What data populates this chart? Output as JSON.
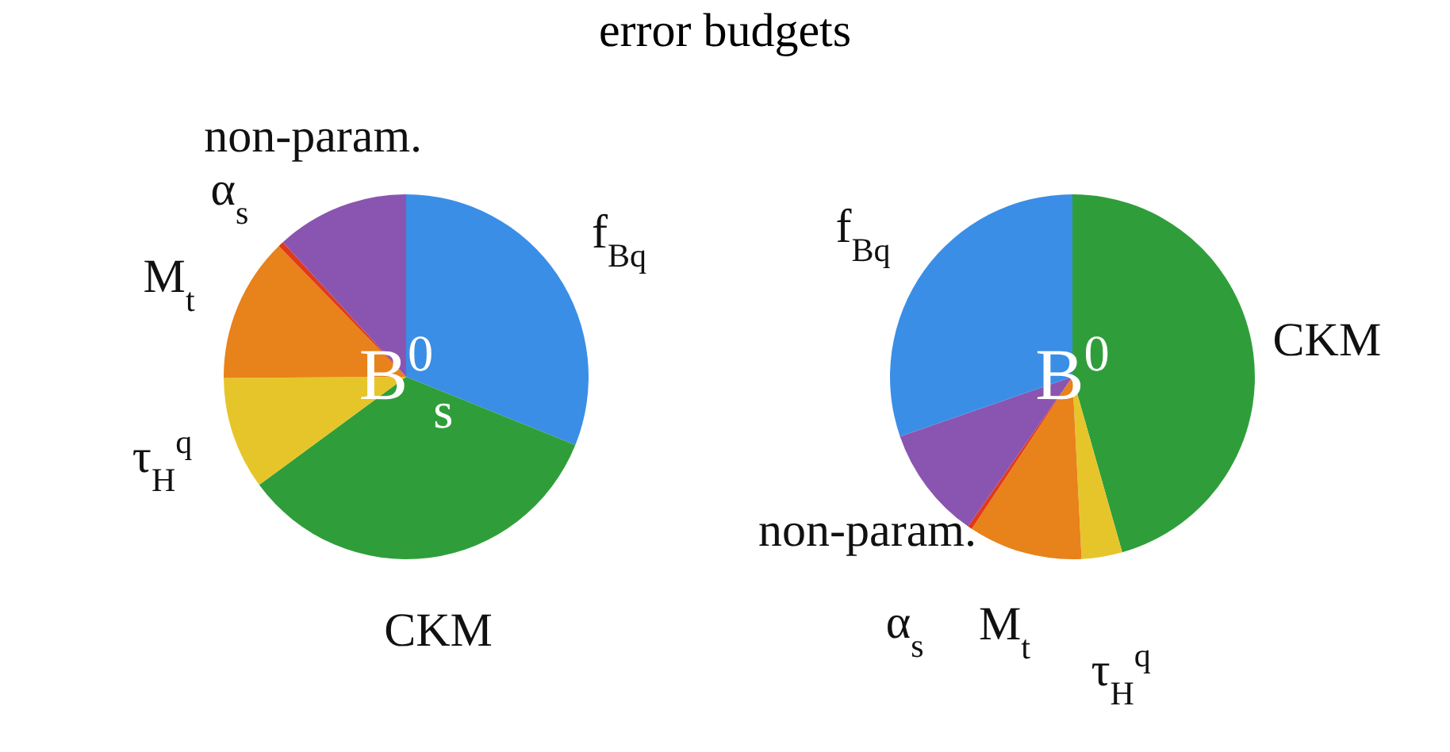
{
  "chart_data": [
    {
      "type": "pie",
      "title": "B$^{0}$$_{s}$",
      "annotations": [
        "error budgets"
      ],
      "legend": false,
      "categories": [
        "f$_{Bq}$",
        "CKM",
        "τ$_{H}$$^{q}$",
        "M$_{t}$",
        "α$_{s}$",
        "non-param."
      ],
      "values": [
        31.1,
        33.8,
        10,
        12.8,
        0.5,
        11.8
      ],
      "colors": [
        "#3a8ee6",
        "#2f9e3a",
        "#e6c52a",
        "#e8821a",
        "#e03a1a",
        "#8a55b0"
      ]
    },
    {
      "type": "pie",
      "title": "B$^{0}$",
      "legend": false,
      "categories": [
        "CKM",
        "τ$_{H}$$^{q}$",
        "M$_{t}$",
        "α$_{s}$",
        "non-param.",
        "f$_{Bq}$"
      ],
      "values": [
        45.6,
        3.6,
        10.1,
        0.4,
        10,
        30.3
      ],
      "colors": [
        "#2f9e3a",
        "#e6c52a",
        "#e8821a",
        "#e03a1a",
        "#8a55b0",
        "#3a8ee6"
      ]
    }
  ]
}
